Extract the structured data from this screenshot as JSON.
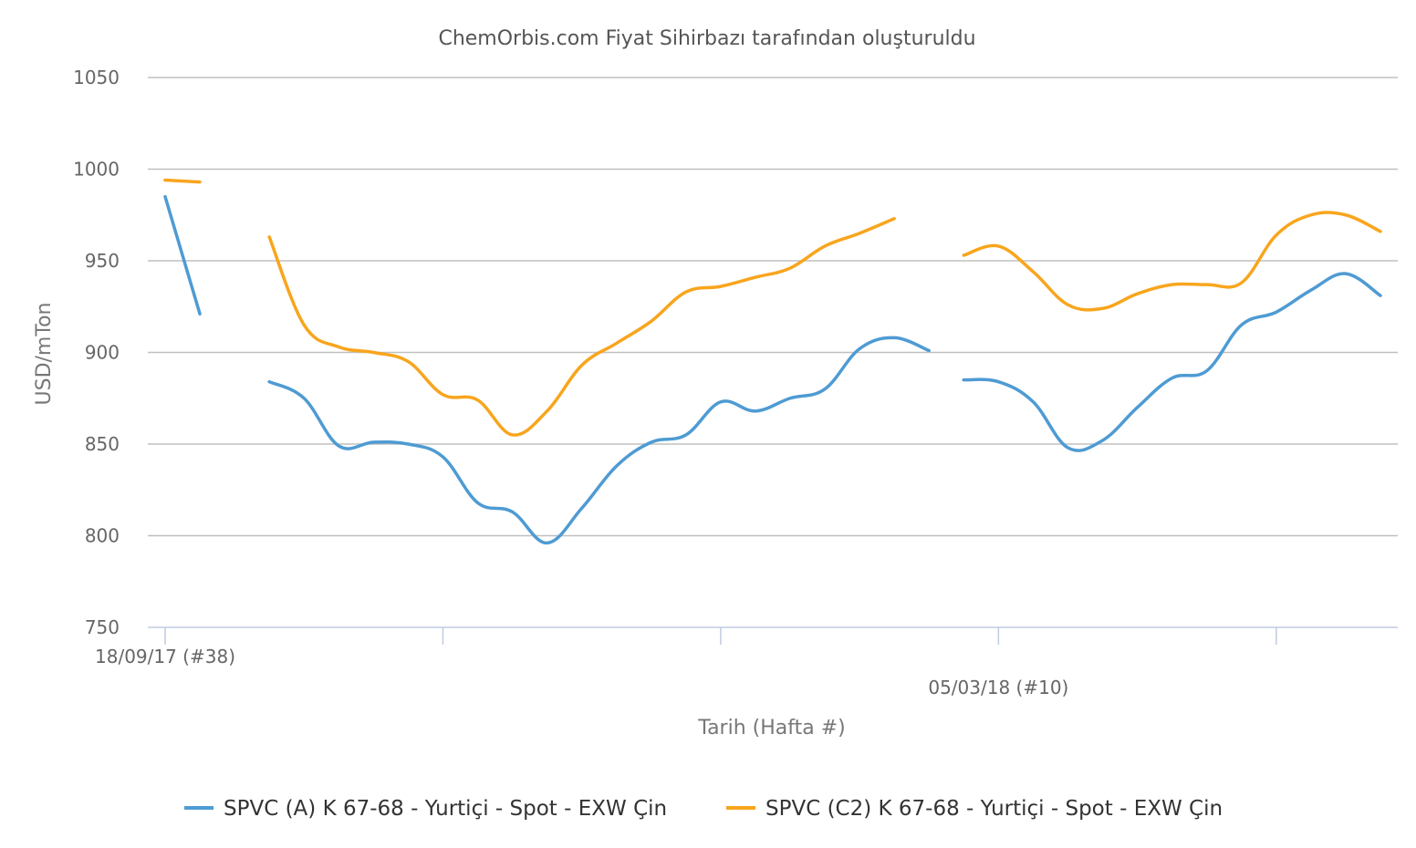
{
  "chart_data": {
    "type": "line",
    "title": "ChemOrbis.com Fiyat Sihirbazı tarafından oluşturuldu",
    "xlabel": "Tarih (Hafta #)",
    "ylabel": "USD/mTon",
    "ylim": [
      750,
      1050
    ],
    "yticks": [
      750,
      800,
      850,
      900,
      950,
      1000,
      1050
    ],
    "xrange": [
      0,
      36
    ],
    "xticks": [
      {
        "x": 0,
        "label": "18/09/17 (#38)"
      },
      {
        "x": 8,
        "label": ""
      },
      {
        "x": 16,
        "label": ""
      },
      {
        "x": 24,
        "label": "05/03/18 (#10)"
      },
      {
        "x": 32,
        "label": ""
      }
    ],
    "grid": true,
    "legend": "bottom",
    "series": [
      {
        "name": "SPVC (A) K 67-68 - Yurtiçi - Spot - EXW Çin",
        "color": "#4e9bd3",
        "segments": [
          [
            [
              0,
              985
            ],
            [
              1,
              921
            ]
          ],
          [
            [
              3,
              884
            ],
            [
              4,
              875
            ],
            [
              5,
              849
            ],
            [
              6,
              851
            ],
            [
              7,
              850
            ],
            [
              8,
              843
            ],
            [
              9,
              818
            ],
            [
              10,
              813
            ],
            [
              11,
              796
            ],
            [
              12,
              815
            ],
            [
              13,
              838
            ],
            [
              14,
              851
            ],
            [
              15,
              855
            ],
            [
              16,
              873
            ],
            [
              17,
              868
            ],
            [
              18,
              875
            ],
            [
              19,
              880
            ],
            [
              20,
              902
            ],
            [
              21,
              908
            ],
            [
              22,
              901
            ]
          ],
          [
            [
              23,
              885
            ],
            [
              24,
              884
            ],
            [
              25,
              873
            ],
            [
              26,
              848
            ],
            [
              27,
              852
            ],
            [
              28,
              870
            ],
            [
              29,
              886
            ],
            [
              30,
              890
            ],
            [
              31,
              915
            ],
            [
              32,
              922
            ],
            [
              33,
              934
            ],
            [
              34,
              943
            ],
            [
              35,
              931
            ]
          ]
        ]
      },
      {
        "name": "SPVC (C2) K 67-68 - Yurtiçi - Spot - EXW Çin",
        "color": "#f8a51d",
        "segments": [
          [
            [
              0,
              994
            ],
            [
              1,
              993
            ]
          ],
          [
            [
              3,
              963
            ],
            [
              4,
              915
            ],
            [
              5,
              903
            ],
            [
              6,
              900
            ],
            [
              7,
              895
            ],
            [
              8,
              877
            ],
            [
              9,
              874
            ],
            [
              10,
              855
            ],
            [
              11,
              868
            ],
            [
              12,
              893
            ],
            [
              13,
              905
            ],
            [
              14,
              917
            ],
            [
              15,
              933
            ],
            [
              16,
              936
            ],
            [
              17,
              941
            ],
            [
              18,
              946
            ],
            [
              19,
              958
            ],
            [
              20,
              965
            ],
            [
              21,
              973
            ]
          ],
          [
            [
              23,
              953
            ],
            [
              24,
              958
            ],
            [
              25,
              944
            ],
            [
              26,
              926
            ],
            [
              27,
              924
            ],
            [
              28,
              932
            ],
            [
              29,
              937
            ],
            [
              30,
              937
            ],
            [
              31,
              938
            ],
            [
              32,
              964
            ],
            [
              33,
              975
            ],
            [
              34,
              975
            ],
            [
              35,
              966
            ]
          ]
        ]
      }
    ]
  }
}
